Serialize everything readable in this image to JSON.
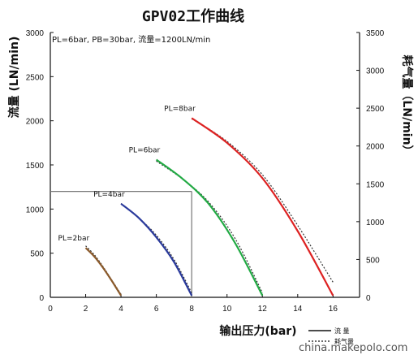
{
  "chart_data": {
    "type": "line",
    "title": "GPV02工作曲线",
    "condition": "PL=6bar, PB=30bar, 流量=1200LN/min",
    "xlabel": "输出压力(bar)",
    "ylabel_left": "流量 (LN/min)",
    "ylabel_right": "耗气量（LN/min）",
    "x_ticks": [
      0,
      2,
      4,
      6,
      8,
      10,
      12,
      14,
      16
    ],
    "xlim": [
      0,
      17.5
    ],
    "y_left_ticks": [
      0,
      500,
      1000,
      1500,
      2000,
      2500,
      3000
    ],
    "ylim_left": [
      0,
      3000
    ],
    "y_right_ticks": [
      0,
      500,
      1000,
      1500,
      2000,
      2500,
      3000,
      3500
    ],
    "ylim_right": [
      0,
      3500
    ],
    "grid": false,
    "legend_position": "bottom-right",
    "legend": [
      {
        "name": "流 量",
        "style": "solid"
      },
      {
        "name": "耗气量",
        "style": "dotted"
      }
    ],
    "series": [
      {
        "name": "PL=2bar",
        "color": "#8B5A2B",
        "flow": [
          [
            2.0,
            560
          ],
          [
            2.5,
            460
          ],
          [
            3.0,
            330
          ],
          [
            3.5,
            180
          ],
          [
            4.0,
            20
          ]
        ],
        "consumption": [
          [
            2.0,
            680
          ],
          [
            2.5,
            560
          ],
          [
            3.0,
            400
          ],
          [
            3.5,
            220
          ],
          [
            4.0,
            40
          ]
        ]
      },
      {
        "name": "PL=4bar",
        "color": "#2A3A9C",
        "flow": [
          [
            4.0,
            1060
          ],
          [
            5.0,
            900
          ],
          [
            6.0,
            680
          ],
          [
            7.0,
            400
          ],
          [
            8.0,
            20
          ]
        ],
        "consumption": [
          [
            4.0,
            1240
          ],
          [
            5.0,
            1050
          ],
          [
            6.0,
            820
          ],
          [
            7.0,
            500
          ],
          [
            8.0,
            60
          ]
        ]
      },
      {
        "name": "PL=6bar",
        "color": "#22AA44",
        "flow": [
          [
            6.0,
            1560
          ],
          [
            7.5,
            1340
          ],
          [
            9.0,
            1050
          ],
          [
            10.5,
            600
          ],
          [
            12.0,
            20
          ]
        ],
        "consumption": [
          [
            6.0,
            1800
          ],
          [
            7.5,
            1560
          ],
          [
            9.0,
            1250
          ],
          [
            10.5,
            760
          ],
          [
            12.0,
            60
          ]
        ]
      },
      {
        "name": "PL=8bar",
        "color": "#DD2222",
        "flow": [
          [
            8.0,
            2030
          ],
          [
            10.0,
            1750
          ],
          [
            12.0,
            1350
          ],
          [
            14.0,
            750
          ],
          [
            16.0,
            20
          ]
        ],
        "consumption": [
          [
            8.0,
            2360
          ],
          [
            10.0,
            2060
          ],
          [
            12.0,
            1620
          ],
          [
            14.0,
            950
          ],
          [
            16.0,
            200
          ]
        ]
      }
    ],
    "reference": {
      "x": 8,
      "y": 1200
    }
  },
  "watermark": "china.makepolo.com"
}
